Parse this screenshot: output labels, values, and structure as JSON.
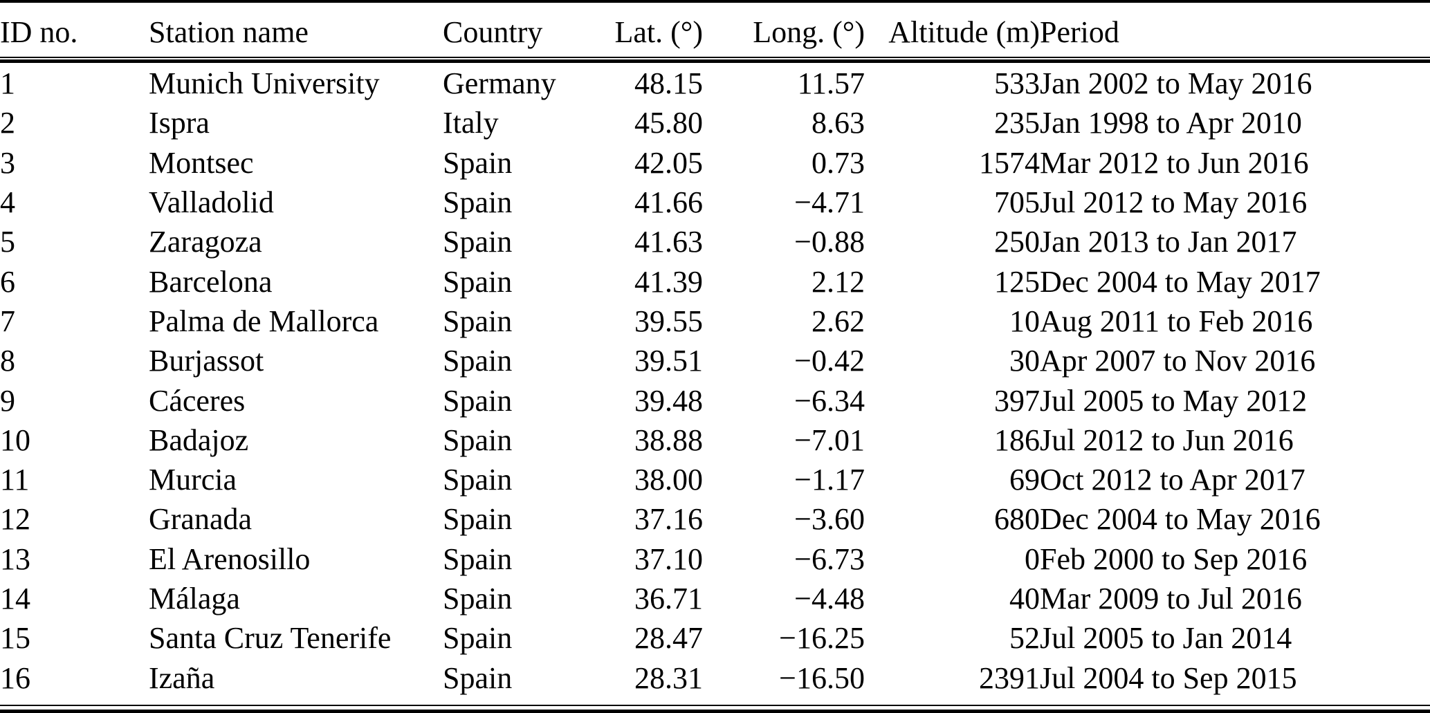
{
  "page": {
    "background_color": "#ffffff",
    "text_color": "#000000",
    "rule_color": "#000000"
  },
  "table": {
    "columns": [
      {
        "label": "ID no.",
        "align": "left"
      },
      {
        "label": "Station name",
        "align": "left"
      },
      {
        "label": "Country",
        "align": "left"
      },
      {
        "label": "Lat. (°)",
        "align": "right"
      },
      {
        "label": "Long. (°)",
        "align": "right"
      },
      {
        "label": "Altitude (m)",
        "align": "right"
      },
      {
        "label": "Period",
        "align": "left"
      }
    ],
    "rows": [
      [
        "1",
        "Munich University",
        "Germany",
        "48.15",
        "11.57",
        "533",
        "Jan 2002 to May 2016"
      ],
      [
        "2",
        "Ispra",
        "Italy",
        "45.80",
        "8.63",
        "235",
        "Jan 1998 to Apr 2010"
      ],
      [
        "3",
        "Montsec",
        "Spain",
        "42.05",
        "0.73",
        "1574",
        "Mar 2012 to Jun 2016"
      ],
      [
        "4",
        "Valladolid",
        "Spain",
        "41.66",
        "−4.71",
        "705",
        "Jul 2012 to May 2016"
      ],
      [
        "5",
        "Zaragoza",
        "Spain",
        "41.63",
        "−0.88",
        "250",
        "Jan 2013 to Jan 2017"
      ],
      [
        "6",
        "Barcelona",
        "Spain",
        "41.39",
        "2.12",
        "125",
        "Dec 2004 to May 2017"
      ],
      [
        "7",
        "Palma de Mallorca",
        "Spain",
        "39.55",
        "2.62",
        "10",
        "Aug 2011 to Feb 2016"
      ],
      [
        "8",
        "Burjassot",
        "Spain",
        "39.51",
        "−0.42",
        "30",
        "Apr 2007 to Nov 2016"
      ],
      [
        "9",
        "Cáceres",
        "Spain",
        "39.48",
        "−6.34",
        "397",
        "Jul 2005 to May 2012"
      ],
      [
        "10",
        "Badajoz",
        "Spain",
        "38.88",
        "−7.01",
        "186",
        "Jul 2012 to Jun 2016"
      ],
      [
        "11",
        "Murcia",
        "Spain",
        "38.00",
        "−1.17",
        "69",
        "Oct 2012 to Apr 2017"
      ],
      [
        "12",
        "Granada",
        "Spain",
        "37.16",
        "−3.60",
        "680",
        "Dec 2004 to May 2016"
      ],
      [
        "13",
        "El Arenosillo",
        "Spain",
        "37.10",
        "−6.73",
        "0",
        "Feb 2000 to Sep 2016"
      ],
      [
        "14",
        "Málaga",
        "Spain",
        "36.71",
        "−4.48",
        "40",
        "Mar 2009 to Jul 2016"
      ],
      [
        "15",
        "Santa Cruz Tenerife",
        "Spain",
        "28.47",
        "−16.25",
        "52",
        "Jul 2005 to Jan 2014"
      ],
      [
        "16",
        "Izaña",
        "Spain",
        "28.31",
        "−16.50",
        "2391",
        "Jul 2004 to Sep 2015"
      ]
    ]
  }
}
